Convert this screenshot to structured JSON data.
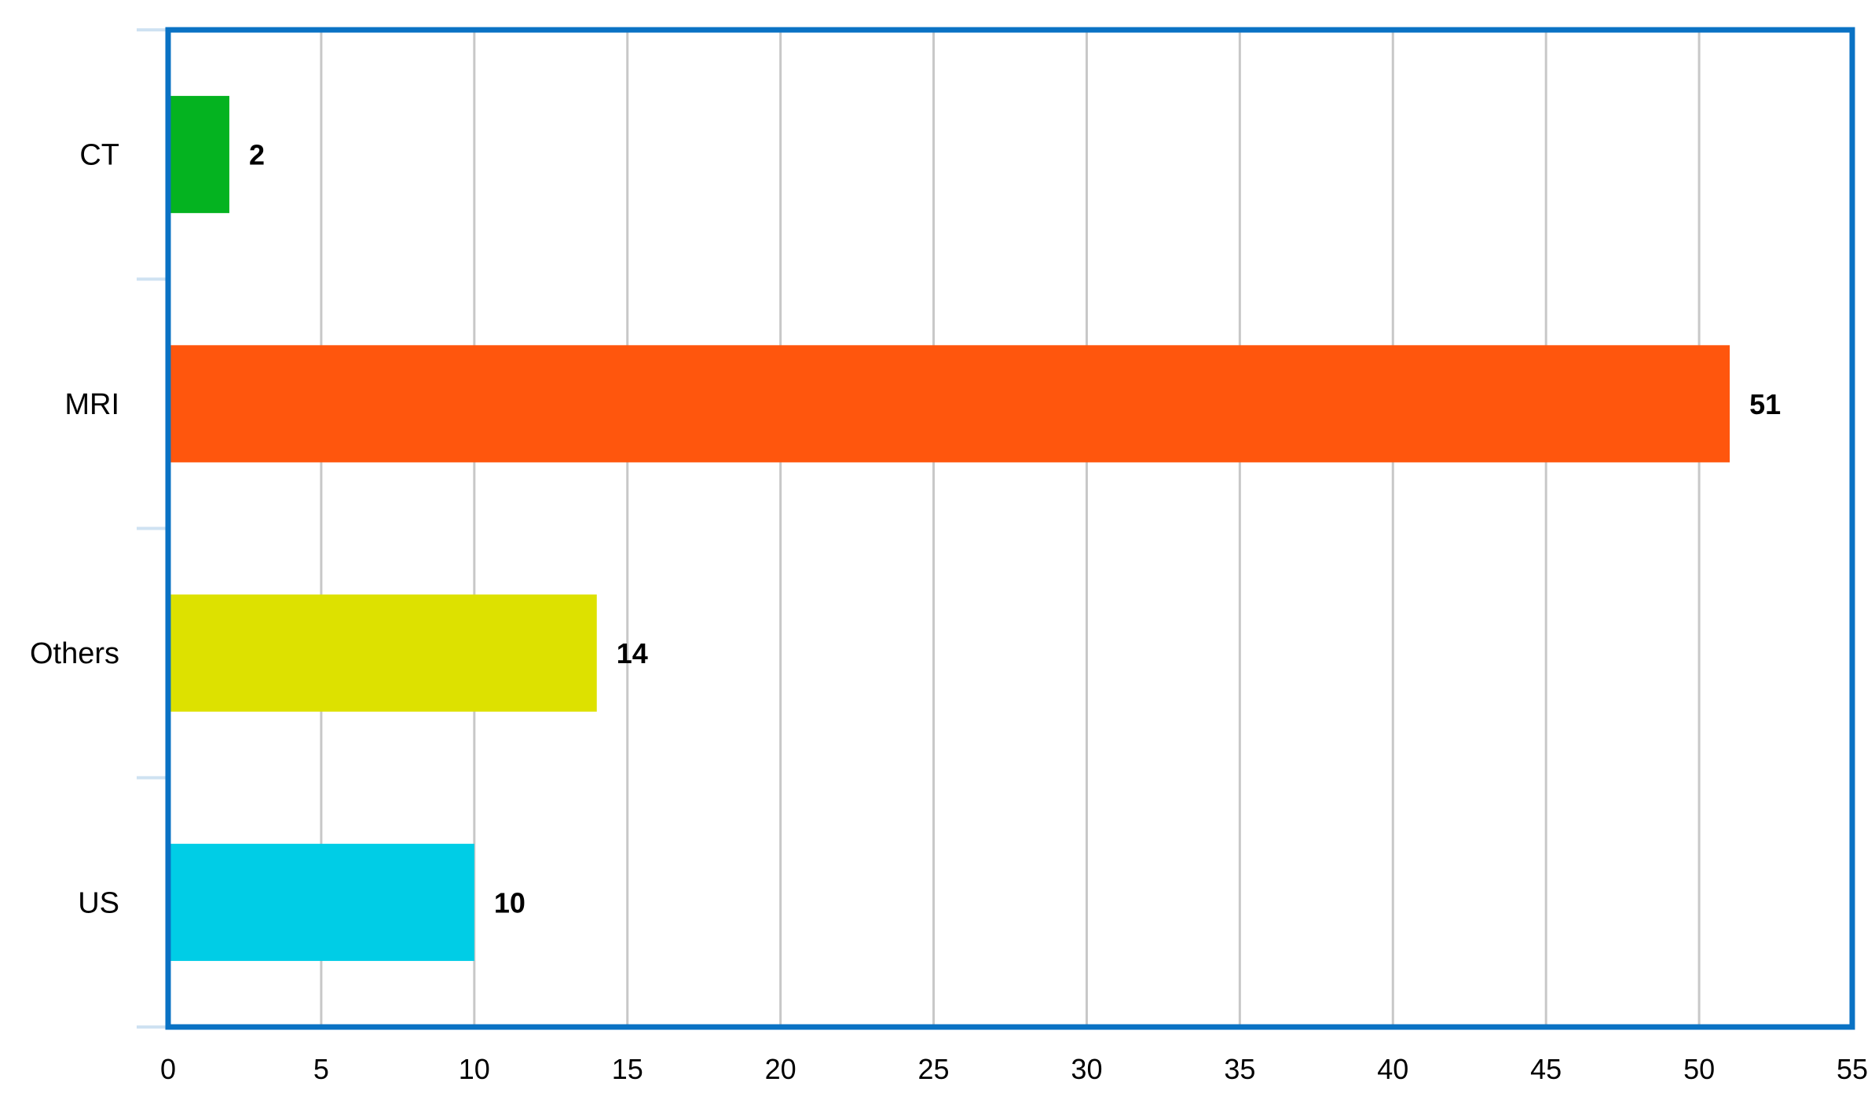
{
  "chart_data": {
    "type": "bar",
    "orientation": "horizontal",
    "categories": [
      "CT",
      "MRI",
      "Others",
      "US"
    ],
    "values": [
      2,
      51,
      14,
      10
    ],
    "colors": [
      "#04b320",
      "#ff560d",
      "#dde100",
      "#00cde6"
    ],
    "xlim": [
      0,
      55
    ],
    "x_ticks": [
      0,
      5,
      10,
      15,
      20,
      25,
      30,
      35,
      40,
      45,
      50,
      55
    ],
    "grid": true,
    "legend": "none",
    "title": "",
    "xlabel": "",
    "ylabel": "",
    "frame_color": "#0a72c4"
  }
}
